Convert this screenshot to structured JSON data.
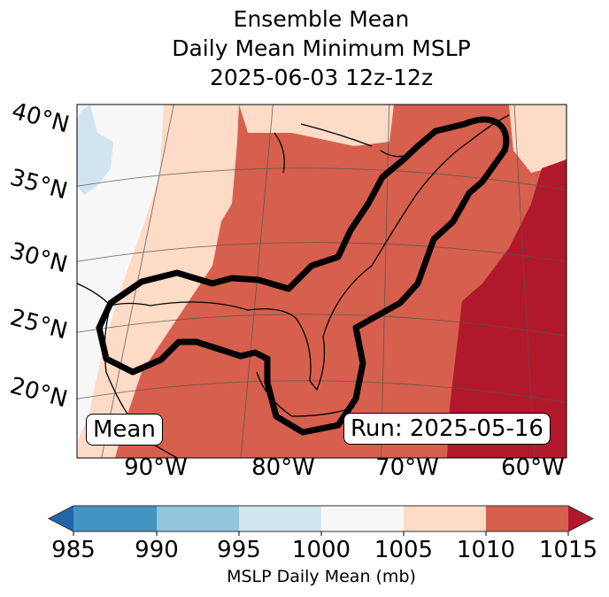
{
  "title": {
    "line1": "Ensemble Mean",
    "line2": "Daily Mean Minimum MSLP",
    "line3": "2025-06-03 12z-12z"
  },
  "map": {
    "lat_labels": [
      "40°N",
      "35°N",
      "30°N",
      "25°N",
      "20°N"
    ],
    "lon_labels": [
      "90°W",
      "80°W",
      "70°W",
      "60°W"
    ],
    "left_label": "Mean",
    "right_label": "Run: 2025-05-16"
  },
  "colorbar": {
    "ticks": [
      "985",
      "990",
      "995",
      "1000",
      "1005",
      "1010",
      "1015"
    ],
    "label": "MSLP Daily Mean (mb)",
    "colors": [
      "#2166ac",
      "#4393c3",
      "#92c5de",
      "#d1e5f0",
      "#f7f7f7",
      "#fddbc7",
      "#d6604d",
      "#b2182b"
    ]
  }
}
